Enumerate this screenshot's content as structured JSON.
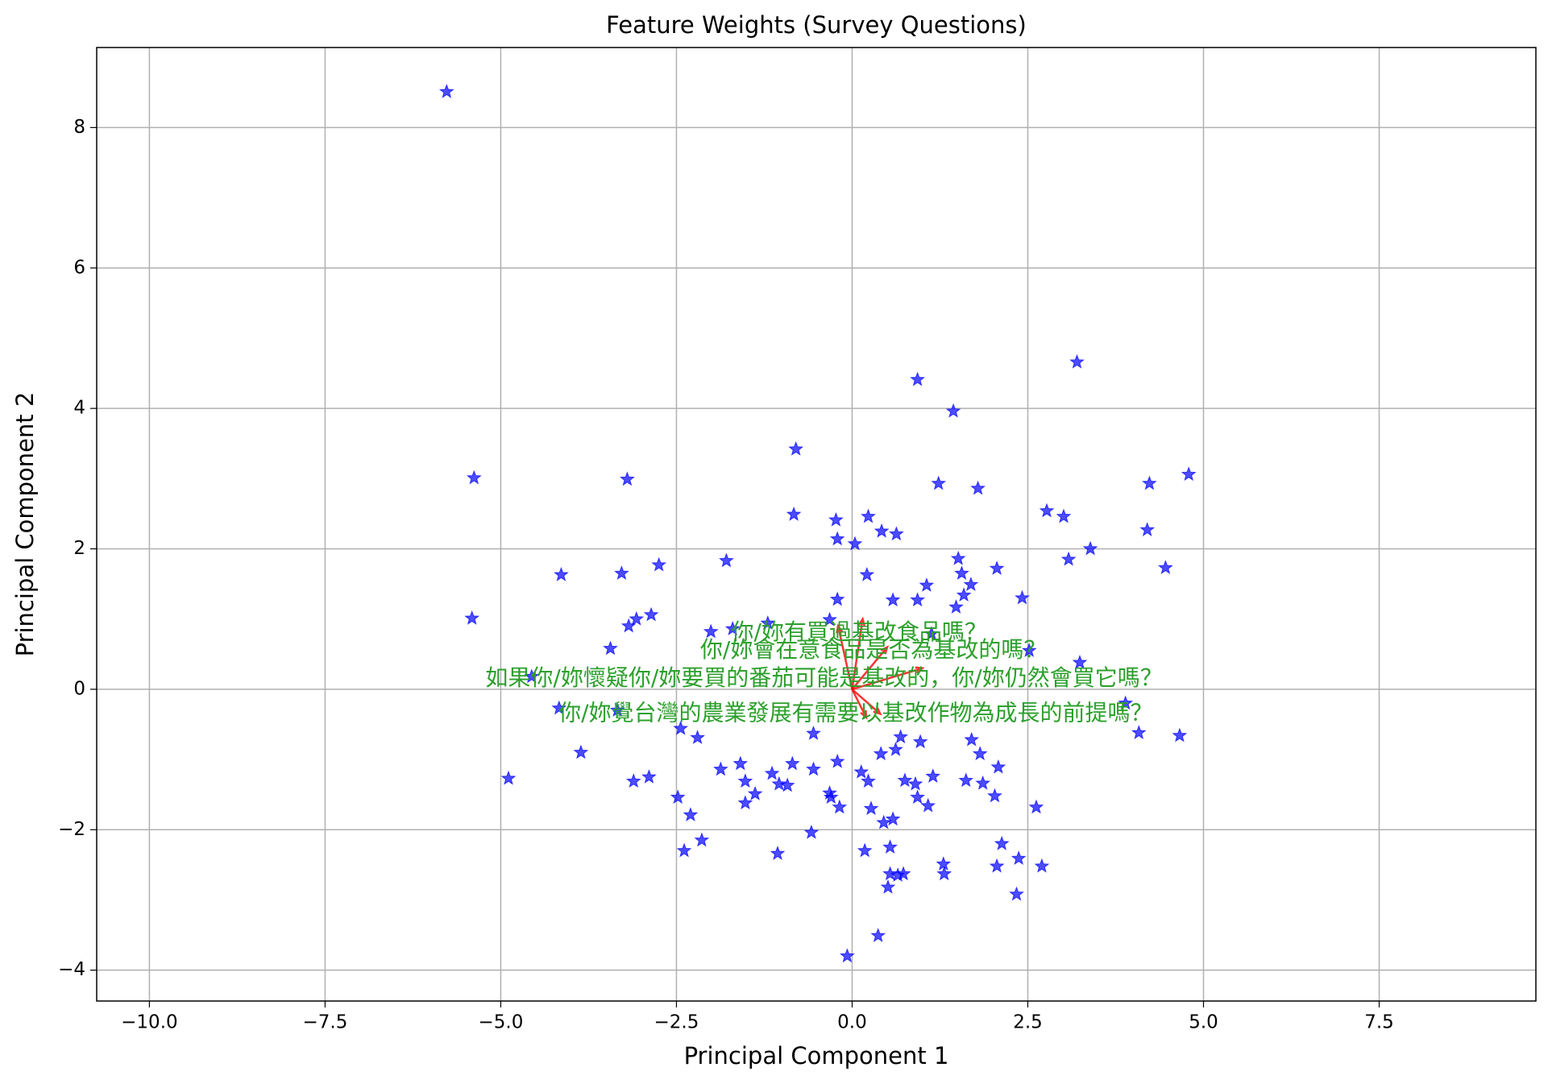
{
  "chart_data": {
    "type": "scatter",
    "title": "Feature Weights (Survey Questions)",
    "x_label": "Principal Component 1",
    "y_label": "Principal Component 2",
    "xlim": [
      -10.75,
      9.73
    ],
    "ylim": [
      -4.44,
      9.14
    ],
    "xticks": [
      {
        "value": -10,
        "label": "−10.0"
      },
      {
        "value": -7.5,
        "label": "−7.5"
      },
      {
        "value": -5,
        "label": "−5.0"
      },
      {
        "value": -2.5,
        "label": "−2.5"
      },
      {
        "value": 0,
        "label": "0.0"
      },
      {
        "value": 2.5,
        "label": "2.5"
      },
      {
        "value": 5,
        "label": "5.0"
      },
      {
        "value": 7.5,
        "label": "7.5"
      }
    ],
    "yticks": [
      {
        "value": -4,
        "label": "−4"
      },
      {
        "value": -2,
        "label": "−2"
      },
      0,
      2,
      4,
      6,
      8
    ],
    "grid": true,
    "series": [
      {
        "color": "#0000ff",
        "x": [
          -5.77,
          -5.38,
          -5.41,
          -3.2,
          -4.14,
          -3.28,
          -2.75,
          -3.18,
          -3.07,
          -2.86,
          -3.44,
          -4.56,
          -4.17,
          -3.34,
          -4.89,
          -3.86,
          -3.11,
          -2.89,
          -2.48,
          -2.3,
          -2.14,
          -2.39,
          -2.44,
          -2.2,
          -1.79,
          -0.8,
          -0.83,
          -0.23,
          -0.21,
          0.04,
          0.23,
          0.42,
          0.63,
          0.21,
          -0.21,
          -0.32,
          0.93,
          1.44,
          1.23,
          1.79,
          3.2,
          2.77,
          3.01,
          4.23,
          4.79,
          4.2,
          3.39,
          3.08,
          4.46,
          2.06,
          1.51,
          1.56,
          1.69,
          1.59,
          1.48,
          1.06,
          0.58,
          0.93,
          2.42,
          1.13,
          2.52,
          3.24,
          3.89,
          4.08,
          4.66,
          2.62,
          2.7,
          2.34,
          2.37,
          2.13,
          2.06,
          2.08,
          2.03,
          1.86,
          1.62,
          1.82,
          1.7,
          1.3,
          1.31,
          1.15,
          1.08,
          0.93,
          0.9,
          0.75,
          0.54,
          0.65,
          0.73,
          0.51,
          0.54,
          0.58,
          0.27,
          0.45,
          0.37,
          -0.07,
          0.18,
          0.23,
          0.13,
          -0.21,
          -0.18,
          -0.32,
          -0.3,
          -0.58,
          -0.55,
          -1.06,
          -0.92,
          -1.14,
          -1.04,
          -0.85,
          -1.38,
          -1.52,
          -1.59,
          -1.87,
          -1.52,
          -1.2,
          -1.7,
          -2.01,
          -0.55,
          0.69,
          0.97,
          0.41,
          0.62
        ],
        "values": [
          8.51,
          3.01,
          1.01,
          2.99,
          1.63,
          1.65,
          1.77,
          0.9,
          1.0,
          1.06,
          0.58,
          0.18,
          -0.27,
          -0.3,
          -1.27,
          -0.9,
          -1.31,
          -1.25,
          -1.54,
          -1.79,
          -2.15,
          -2.3,
          -0.56,
          -0.69,
          1.83,
          3.42,
          2.49,
          2.41,
          2.14,
          2.07,
          2.46,
          2.25,
          2.21,
          1.63,
          1.28,
          0.99,
          4.41,
          3.96,
          2.93,
          2.86,
          4.66,
          2.54,
          2.46,
          2.93,
          3.06,
          2.27,
          2.0,
          1.85,
          1.73,
          1.72,
          1.86,
          1.65,
          1.49,
          1.34,
          1.17,
          1.48,
          1.27,
          1.27,
          1.3,
          0.79,
          0.55,
          0.38,
          -0.2,
          -0.62,
          -0.66,
          -1.68,
          -2.52,
          -2.92,
          -2.41,
          -2.2,
          -2.52,
          -1.11,
          -1.52,
          -1.34,
          -1.3,
          -0.92,
          -0.72,
          -2.49,
          -2.63,
          -1.24,
          -1.66,
          -1.54,
          -1.35,
          -1.3,
          -2.63,
          -2.65,
          -2.63,
          -2.82,
          -2.25,
          -1.85,
          -1.7,
          -1.9,
          -3.51,
          -3.8,
          -2.3,
          -1.31,
          -1.18,
          -1.03,
          -1.68,
          -1.48,
          -1.54,
          -2.04,
          -1.14,
          -2.34,
          -1.37,
          -1.2,
          -1.35,
          -1.06,
          -1.49,
          -1.62,
          -1.06,
          -1.14,
          -1.31,
          0.94,
          0.86,
          0.82,
          -0.63,
          -0.68,
          -0.75,
          -0.92,
          -0.86
        ]
      }
    ],
    "arrows": {
      "color": "#ff0000",
      "x": [
        -0.2,
        0.15,
        0.4,
        0.2,
        1.0,
        0.5
      ],
      "y": [
        0.9,
        1.0,
        -0.35,
        -0.4,
        0.3,
        0.6
      ]
    },
    "annotations": {
      "color": "#2ca02c",
      "texts": [
        "如果你/妳懷疑你/妳要買的番茄可能是基改的，你/妳仍然會買它嗎？",
        "你/妳覺台灣的農業發展有需要以基改作物為成長的前提嗎？",
        "你/妳有買過基改食品嗎？",
        "你/妳會在意食品是否為基改的嗎？"
      ],
      "x": [
        -0.4,
        0.05,
        0.1,
        0.3
      ],
      "y": [
        0.15,
        -0.35,
        0.8,
        0.55
      ]
    }
  }
}
